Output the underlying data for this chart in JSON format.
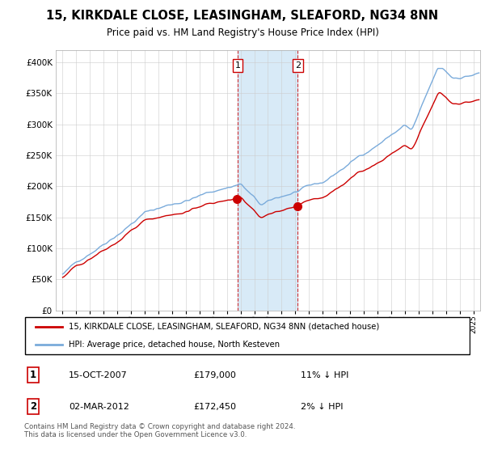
{
  "title": "15, KIRKDALE CLOSE, LEASINGHAM, SLEAFORD, NG34 8NN",
  "subtitle": "Price paid vs. HM Land Registry's House Price Index (HPI)",
  "legend_line1": "15, KIRKDALE CLOSE, LEASINGHAM, SLEAFORD, NG34 8NN (detached house)",
  "legend_line2": "HPI: Average price, detached house, North Kesteven",
  "transaction1_date": "15-OCT-2007",
  "transaction1_price": "£179,000",
  "transaction1_hpi": "11% ↓ HPI",
  "transaction2_date": "02-MAR-2012",
  "transaction2_price": "£172,450",
  "transaction2_hpi": "2% ↓ HPI",
  "footer": "Contains HM Land Registry data © Crown copyright and database right 2024.\nThis data is licensed under the Open Government Licence v3.0.",
  "hpi_color": "#7aabdb",
  "price_color": "#cc0000",
  "highlight_color": "#d8eaf7",
  "transaction1_x": 2007.79,
  "transaction2_x": 2012.17,
  "ylim_min": 0,
  "ylim_max": 420000,
  "xlim_min": 1994.5,
  "xlim_max": 2025.5
}
